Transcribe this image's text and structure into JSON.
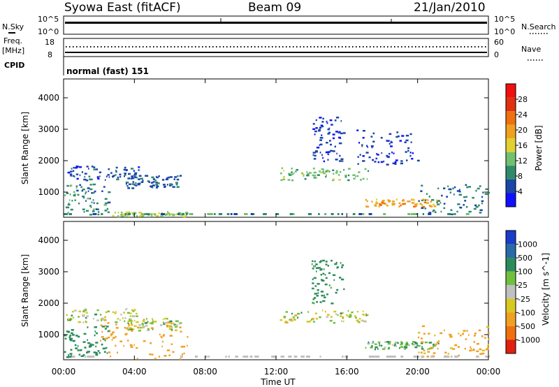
{
  "header": {
    "title": "Syowa East (fitACF)",
    "beam": "Beam 09",
    "date": "21/Jan/2010"
  },
  "noise_panel": {
    "left_label": "N.Sky",
    "right_label": "N.Search",
    "left_ticks": [
      "10^5",
      "10^0"
    ],
    "right_ticks": [
      "10^5",
      "10^0"
    ]
  },
  "freq_panel": {
    "left_label_line1": "Freq.",
    "left_label_line2": "[MHz]",
    "left_ticks": [
      "18",
      "8"
    ],
    "right_label": "Nave",
    "right_ticks": [
      "60",
      "0"
    ]
  },
  "cpid_panel": {
    "label": "CPID",
    "value": "normal (fast) 151"
  },
  "x_axis": {
    "label": "Time UT",
    "ticks": [
      "00:00",
      "04:00",
      "08:00",
      "12:00",
      "16:00",
      "20:00",
      "00:00"
    ]
  },
  "colors": {
    "power_scale": [
      "#1010ff",
      "#1a46a8",
      "#2f8a6a",
      "#70c070",
      "#e0d030",
      "#f0a020",
      "#f07010",
      "#e03010",
      "#f01010"
    ],
    "velocity_scale": [
      "#1a3cc8",
      "#2a6aa8",
      "#2a8c5a",
      "#70c040",
      "#c0c0c0",
      "#d8c820",
      "#f0a020",
      "#f07010",
      "#e02010"
    ]
  },
  "chart_data": [
    {
      "type": "heatmap",
      "title": "",
      "xlabel": "Time UT",
      "ylabel": "Slant Range [km]",
      "xlim": [
        "00:00",
        "24:00"
      ],
      "ylim": [
        200,
        4600
      ],
      "yticks": [
        "1000",
        "2000",
        "3000",
        "4000"
      ],
      "colorbar_label": "Power [dB]",
      "colorbar_ticks": [
        "4",
        "8",
        "12",
        "16",
        "20",
        "24",
        "28"
      ],
      "features": [
        {
          "t0": 0.1,
          "t1": 4.2,
          "r0": 1400,
          "r1": 1850,
          "level": 6
        },
        {
          "t0": 3.5,
          "t1": 6.6,
          "r0": 1150,
          "r1": 1550,
          "level": 7
        },
        {
          "t0": 0.0,
          "t1": 2.5,
          "r0": 250,
          "r1": 1300,
          "level": 10
        },
        {
          "t0": 2.5,
          "t1": 7.0,
          "r0": 250,
          "r1": 400,
          "level": 16
        },
        {
          "t0": 12.2,
          "t1": 17.2,
          "r0": 1400,
          "r1": 1800,
          "level": 14
        },
        {
          "t0": 14.0,
          "t1": 15.8,
          "r0": 2000,
          "r1": 3400,
          "level": 5
        },
        {
          "t0": 17.0,
          "t1": 21.2,
          "r0": 550,
          "r1": 800,
          "level": 22
        },
        {
          "t0": 20.0,
          "t1": 24.0,
          "r0": 300,
          "r1": 1300,
          "level": 9
        },
        {
          "t0": 16.5,
          "t1": 20.0,
          "r0": 1900,
          "r1": 3000,
          "level": 5
        }
      ]
    },
    {
      "type": "heatmap",
      "title": "",
      "xlabel": "Time UT",
      "ylabel": "Slant Range [km]",
      "xlim": [
        "00:00",
        "24:00"
      ],
      "ylim": [
        200,
        4600
      ],
      "yticks": [
        "1000",
        "2000",
        "3000",
        "4000"
      ],
      "colorbar_label": "Velocity [m s^-1]",
      "colorbar_ticks": [
        "1000",
        "500",
        "100",
        "25",
        "-25",
        "-100",
        "-500",
        "-1000"
      ],
      "features": [
        {
          "t0": 0.1,
          "t1": 4.2,
          "r0": 1400,
          "r1": 1850,
          "v": 0
        },
        {
          "t0": 3.5,
          "t1": 6.6,
          "r0": 1150,
          "r1": 1550,
          "v": 0
        },
        {
          "t0": 0.0,
          "t1": 2.5,
          "r0": 300,
          "r1": 1300,
          "v": 300
        },
        {
          "t0": 2.0,
          "t1": 7.0,
          "r0": 250,
          "r1": 1400,
          "v": -300
        },
        {
          "t0": 12.2,
          "t1": 17.2,
          "r0": 1400,
          "r1": 1800,
          "v": 0
        },
        {
          "t0": 14.0,
          "t1": 15.8,
          "r0": 2000,
          "r1": 3400,
          "v": 200
        },
        {
          "t0": 17.0,
          "t1": 21.2,
          "r0": 550,
          "r1": 800,
          "v": 100
        },
        {
          "t0": 20.0,
          "t1": 24.0,
          "r0": 300,
          "r1": 1300,
          "v": -200
        }
      ]
    }
  ]
}
